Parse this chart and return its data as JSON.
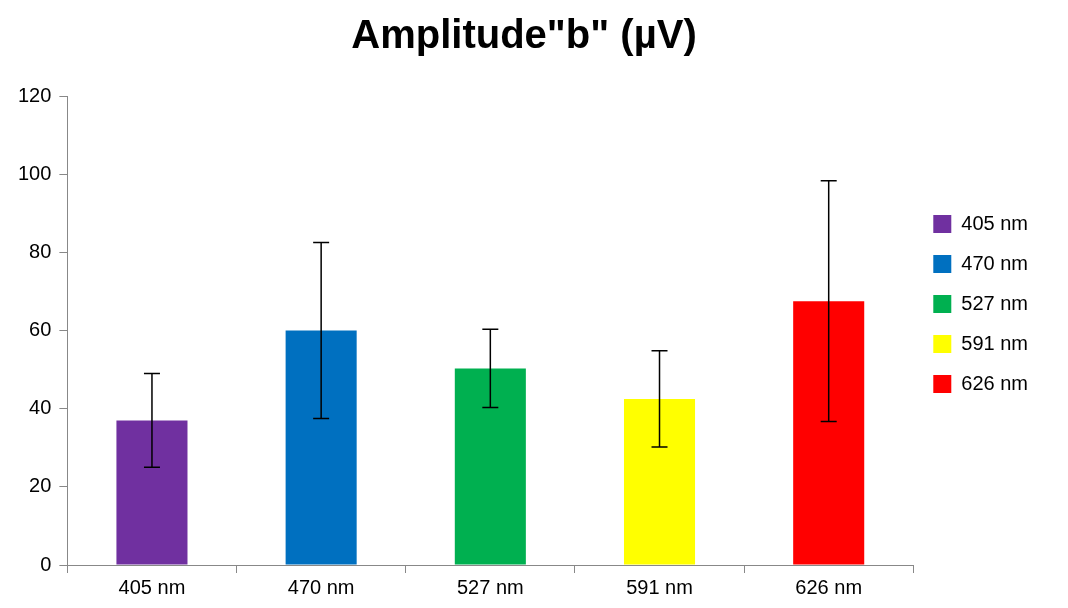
{
  "chart_data": {
    "type": "bar",
    "title": "Amplitude\"b\" (µV)",
    "categories": [
      "405 nm",
      "470 nm",
      "527 nm",
      "591 nm",
      "626 nm"
    ],
    "series": [
      {
        "name": "405 nm",
        "color": "#7030a0",
        "values": [
          37,
          null,
          null,
          null,
          null
        ],
        "errors": [
          12,
          null,
          null,
          null,
          null
        ]
      },
      {
        "name": "470 nm",
        "color": "#0070c0",
        "values": [
          null,
          60,
          null,
          null,
          null
        ],
        "errors": [
          null,
          22.5,
          null,
          null,
          null
        ]
      },
      {
        "name": "527 nm",
        "color": "#00b050",
        "values": [
          null,
          null,
          50.3,
          null,
          null
        ],
        "errors": [
          null,
          null,
          10,
          null,
          null
        ]
      },
      {
        "name": "591 nm",
        "color": "#ffff00",
        "values": [
          null,
          null,
          null,
          42.5,
          null
        ],
        "errors": [
          null,
          null,
          null,
          12.3,
          null
        ]
      },
      {
        "name": "626 nm",
        "color": "#ff0000",
        "values": [
          null,
          null,
          null,
          null,
          67.5
        ],
        "errors": [
          null,
          null,
          null,
          null,
          30.8
        ]
      }
    ],
    "ylim": [
      0,
      120
    ],
    "yticks": [
      0,
      20,
      40,
      60,
      80,
      100,
      120
    ],
    "grid": false,
    "legend": "right"
  }
}
